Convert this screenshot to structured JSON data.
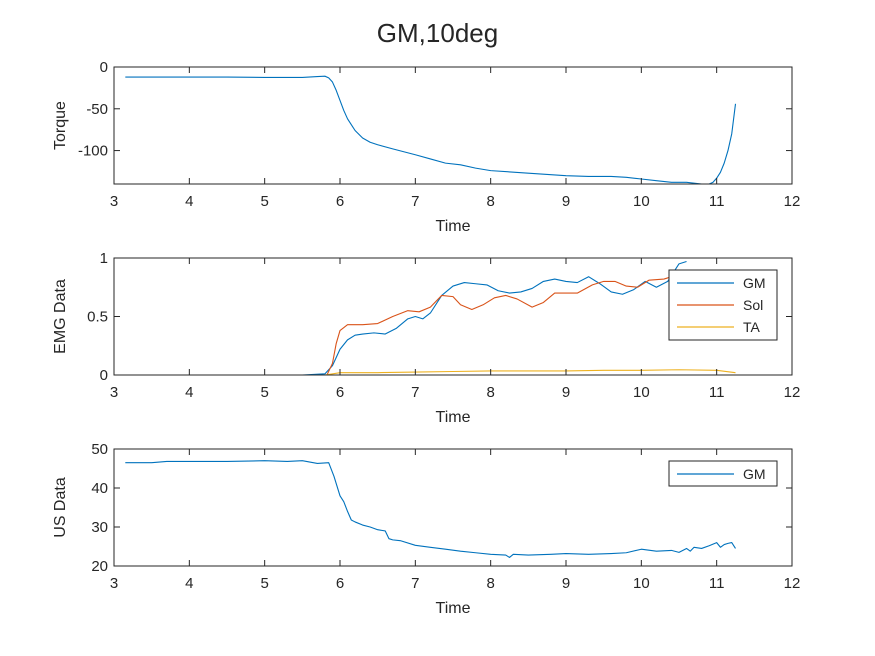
{
  "figure": {
    "title": "GM,10deg"
  },
  "chart_data": [
    {
      "type": "line",
      "xlabel": "Time",
      "ylabel": "Torque",
      "xlim": [
        3,
        12
      ],
      "ylim": [
        -140,
        0
      ],
      "xticks": [
        3,
        4,
        5,
        6,
        7,
        8,
        9,
        10,
        11,
        12
      ],
      "yticks": [
        0,
        -50,
        -100
      ],
      "grid": false,
      "legend": null,
      "series": [
        {
          "color": "#0072BD",
          "x": [
            3.15,
            3.5,
            4.0,
            4.5,
            5.0,
            5.5,
            5.7,
            5.8,
            5.85,
            5.9,
            5.95,
            6.0,
            6.05,
            6.1,
            6.2,
            6.3,
            6.4,
            6.5,
            6.7,
            7.0,
            7.2,
            7.4,
            7.6,
            7.8,
            8.0,
            8.5,
            9.0,
            9.3,
            9.6,
            9.8,
            10.0,
            10.2,
            10.4,
            10.6,
            10.8,
            10.9,
            10.95,
            11.0,
            11.05,
            11.1,
            11.15,
            11.2,
            11.25
          ],
          "y": [
            -12,
            -12,
            -12,
            -12,
            -12.5,
            -12.5,
            -11.5,
            -11,
            -13,
            -18,
            -28,
            -40,
            -52,
            -62,
            -76,
            -85,
            -90,
            -93,
            -98,
            -105,
            -110,
            -115,
            -117,
            -121,
            -124,
            -127,
            -130,
            -131,
            -131,
            -132,
            -134,
            -136,
            -138,
            -138,
            -140,
            -140,
            -138,
            -133,
            -126,
            -115,
            -100,
            -80,
            -44
          ]
        }
      ]
    },
    {
      "type": "line",
      "xlabel": "Time",
      "ylabel": "EMG Data",
      "xlim": [
        3,
        12
      ],
      "ylim": [
        0,
        1
      ],
      "xticks": [
        3,
        4,
        5,
        6,
        7,
        8,
        9,
        10,
        11,
        12
      ],
      "yticks": [
        0,
        0.5,
        1
      ],
      "grid": false,
      "legend": "top-right",
      "series": [
        {
          "name": "GM",
          "color": "#0072BD",
          "x": [
            3.0,
            4.0,
            5.0,
            5.5,
            5.8,
            5.9,
            6.0,
            6.1,
            6.2,
            6.3,
            6.45,
            6.6,
            6.75,
            6.9,
            7.0,
            7.1,
            7.2,
            7.35,
            7.5,
            7.65,
            7.8,
            7.95,
            8.1,
            8.25,
            8.4,
            8.55,
            8.7,
            8.85,
            9.0,
            9.15,
            9.3,
            9.45,
            9.6,
            9.75,
            9.9,
            10.05,
            10.2,
            10.35,
            10.5,
            10.6
          ],
          "y": [
            0.0,
            0.0,
            0.0,
            0.0,
            0.01,
            0.08,
            0.22,
            0.3,
            0.34,
            0.35,
            0.36,
            0.35,
            0.4,
            0.48,
            0.5,
            0.48,
            0.53,
            0.68,
            0.76,
            0.79,
            0.78,
            0.77,
            0.72,
            0.7,
            0.71,
            0.74,
            0.8,
            0.82,
            0.8,
            0.79,
            0.84,
            0.78,
            0.71,
            0.69,
            0.73,
            0.8,
            0.75,
            0.8,
            0.95,
            0.97
          ]
        },
        {
          "name": "Sol",
          "color": "#D95319",
          "x": [
            3.0,
            4.0,
            5.0,
            5.5,
            5.75,
            5.82,
            5.9,
            5.95,
            6.0,
            6.1,
            6.3,
            6.5,
            6.7,
            6.9,
            7.05,
            7.2,
            7.35,
            7.5,
            7.6,
            7.75,
            7.9,
            8.05,
            8.2,
            8.35,
            8.55,
            8.7,
            8.85,
            9.0,
            9.15,
            9.35,
            9.5,
            9.65,
            9.8,
            9.95,
            10.1,
            10.3,
            10.45
          ],
          "y": [
            0.0,
            0.0,
            0.0,
            0.0,
            0.0,
            -0.01,
            0.1,
            0.27,
            0.38,
            0.43,
            0.43,
            0.44,
            0.5,
            0.55,
            0.54,
            0.58,
            0.68,
            0.67,
            0.6,
            0.56,
            0.6,
            0.66,
            0.68,
            0.65,
            0.58,
            0.62,
            0.7,
            0.7,
            0.7,
            0.77,
            0.8,
            0.8,
            0.76,
            0.75,
            0.81,
            0.82,
            0.85
          ]
        },
        {
          "name": "TA",
          "color": "#EDB120",
          "x": [
            3.0,
            4.0,
            5.0,
            5.5,
            5.8,
            6.0,
            6.5,
            7.0,
            7.5,
            8.0,
            8.5,
            9.0,
            9.5,
            10.0,
            10.5,
            11.0,
            11.25
          ],
          "y": [
            0.0,
            0.0,
            0.0,
            0.0,
            0.0,
            0.02,
            0.02,
            0.025,
            0.03,
            0.035,
            0.035,
            0.035,
            0.04,
            0.04,
            0.045,
            0.04,
            0.02
          ]
        }
      ]
    },
    {
      "type": "line",
      "xlabel": "Time",
      "ylabel": "US Data",
      "xlim": [
        3,
        12
      ],
      "ylim": [
        20,
        50
      ],
      "xticks": [
        3,
        4,
        5,
        6,
        7,
        8,
        9,
        10,
        11,
        12
      ],
      "yticks": [
        20,
        30,
        40,
        50
      ],
      "grid": false,
      "legend": "top-right",
      "series": [
        {
          "name": "GM",
          "color": "#0072BD",
          "x": [
            3.15,
            3.5,
            3.7,
            4.0,
            4.5,
            5.0,
            5.3,
            5.5,
            5.7,
            5.85,
            5.92,
            6.0,
            6.05,
            6.1,
            6.15,
            6.2,
            6.3,
            6.4,
            6.5,
            6.6,
            6.65,
            6.7,
            6.8,
            7.0,
            7.2,
            7.4,
            7.6,
            7.8,
            8.0,
            8.2,
            8.25,
            8.3,
            8.5,
            8.8,
            9.0,
            9.3,
            9.6,
            9.8,
            10.0,
            10.2,
            10.4,
            10.5,
            10.6,
            10.65,
            10.7,
            10.8,
            10.9,
            11.0,
            11.05,
            11.1,
            11.15,
            11.2,
            11.25
          ],
          "y": [
            46.5,
            46.5,
            46.8,
            46.8,
            46.8,
            47.0,
            46.8,
            47.0,
            46.3,
            46.5,
            43.0,
            38.0,
            36.5,
            34.0,
            31.8,
            31.3,
            30.5,
            30.0,
            29.3,
            29.0,
            27.0,
            26.7,
            26.5,
            25.3,
            24.8,
            24.3,
            23.8,
            23.4,
            23.0,
            22.8,
            22.2,
            23.0,
            22.8,
            23.0,
            23.2,
            23.0,
            23.2,
            23.4,
            24.3,
            23.8,
            24.0,
            23.5,
            24.5,
            23.8,
            24.8,
            24.5,
            25.2,
            26.0,
            24.8,
            25.5,
            25.8,
            26.0,
            24.5
          ]
        }
      ]
    }
  ]
}
